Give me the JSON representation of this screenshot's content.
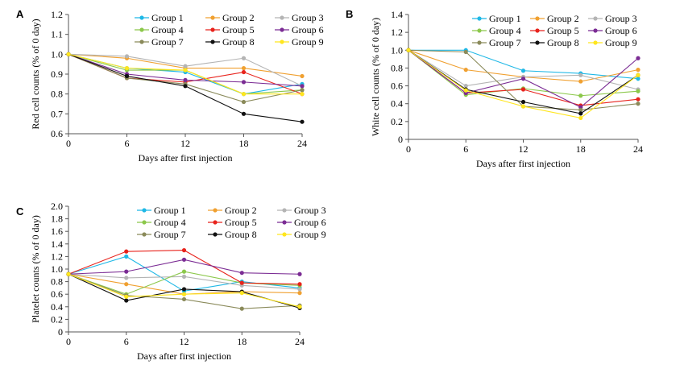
{
  "groups": [
    "Group 1",
    "Group 2",
    "Group 3",
    "Group 4",
    "Group 5",
    "Group 6",
    "Group 7",
    "Group 8",
    "Group 9"
  ],
  "colors": {
    "Group 1": "#1fb8e6",
    "Group 2": "#f0a030",
    "Group 3": "#b4b4b4",
    "Group 4": "#8cc84b",
    "Group 5": "#e8231c",
    "Group 6": "#7b2c94",
    "Group 7": "#8a8a5a",
    "Group 8": "#111111",
    "Group 9": "#ffe61e"
  },
  "chart_data": [
    {
      "panel": "A",
      "type": "line",
      "x": [
        0,
        6,
        12,
        18,
        24
      ],
      "xlabel": "Days after first injection",
      "ylabel": "Red cell counts (% of 0 day)",
      "ylim": [
        0.6,
        1.2
      ],
      "yticks": [
        "0.6",
        "0.7",
        "0.8",
        "0.9",
        "1.0",
        "1.1",
        "1.2"
      ],
      "xticks": [
        "0",
        "6",
        "12",
        "18",
        "24"
      ],
      "legend": "top-right",
      "series": [
        {
          "name": "Group 1",
          "values": [
            1.0,
            0.93,
            0.91,
            0.8,
            0.85
          ]
        },
        {
          "name": "Group 2",
          "values": [
            1.0,
            0.98,
            0.93,
            0.93,
            0.89
          ]
        },
        {
          "name": "Group 3",
          "values": [
            1.0,
            0.99,
            0.94,
            0.98,
            0.84
          ]
        },
        {
          "name": "Group 4",
          "values": [
            1.0,
            0.92,
            0.92,
            0.8,
            0.82
          ]
        },
        {
          "name": "Group 5",
          "values": [
            1.0,
            0.88,
            0.86,
            0.91,
            0.8
          ]
        },
        {
          "name": "Group 6",
          "values": [
            1.0,
            0.9,
            0.87,
            0.86,
            0.84
          ]
        },
        {
          "name": "Group 7",
          "values": [
            1.0,
            0.88,
            0.85,
            0.76,
            0.82
          ]
        },
        {
          "name": "Group 8",
          "values": [
            1.0,
            0.89,
            0.84,
            0.7,
            0.66
          ]
        },
        {
          "name": "Group 9",
          "values": [
            1.0,
            0.93,
            0.92,
            0.8,
            0.8
          ]
        }
      ]
    },
    {
      "panel": "B",
      "type": "line",
      "x": [
        0,
        6,
        12,
        18,
        24
      ],
      "xlabel": "Days after first injection",
      "ylabel": "White cell counts (% of 0 day)",
      "ylim": [
        0,
        1.4
      ],
      "yticks": [
        "0",
        "0.2",
        "0.4",
        "0.6",
        "0.8",
        "1.0",
        "1.2",
        "1.4"
      ],
      "xticks": [
        "0",
        "6",
        "12",
        "18",
        "24"
      ],
      "legend": "top-right",
      "series": [
        {
          "name": "Group 1",
          "values": [
            1.0,
            1.0,
            0.77,
            0.74,
            0.68
          ]
        },
        {
          "name": "Group 2",
          "values": [
            1.0,
            0.78,
            0.7,
            0.65,
            0.78
          ]
        },
        {
          "name": "Group 3",
          "values": [
            1.0,
            0.6,
            0.7,
            0.72,
            0.56
          ]
        },
        {
          "name": "Group 4",
          "values": [
            1.0,
            0.5,
            0.57,
            0.49,
            0.54
          ]
        },
        {
          "name": "Group 5",
          "values": [
            1.0,
            0.52,
            0.56,
            0.38,
            0.45
          ]
        },
        {
          "name": "Group 6",
          "values": [
            1.0,
            0.52,
            0.68,
            0.36,
            0.91
          ]
        },
        {
          "name": "Group 7",
          "values": [
            1.0,
            0.98,
            0.37,
            0.33,
            0.4
          ]
        },
        {
          "name": "Group 8",
          "values": [
            1.0,
            0.56,
            0.42,
            0.29,
            0.72
          ]
        },
        {
          "name": "Group 9",
          "values": [
            1.0,
            0.55,
            0.37,
            0.24,
            0.72
          ]
        }
      ]
    },
    {
      "panel": "C",
      "type": "line",
      "x": [
        0,
        6,
        12,
        18,
        24
      ],
      "xlabel": "Days after first injection",
      "ylabel": "Platelet counts (% of 0 day)",
      "ylim": [
        0,
        2.0
      ],
      "yticks": [
        "0",
        "0.2",
        "0.4",
        "0.6",
        "0.8",
        "1.0",
        "1.2",
        "1.4",
        "1.6",
        "1.8",
        "2.0"
      ],
      "xticks": [
        "0",
        "6",
        "12",
        "18",
        "24"
      ],
      "legend": "top",
      "series": [
        {
          "name": "Group 1",
          "values": [
            0.92,
            1.2,
            0.65,
            0.8,
            0.7
          ]
        },
        {
          "name": "Group 2",
          "values": [
            0.92,
            0.76,
            0.6,
            0.64,
            0.62
          ]
        },
        {
          "name": "Group 3",
          "values": [
            0.92,
            0.86,
            0.88,
            0.74,
            0.68
          ]
        },
        {
          "name": "Group 4",
          "values": [
            0.92,
            0.6,
            0.96,
            0.78,
            0.74
          ]
        },
        {
          "name": "Group 5",
          "values": [
            0.92,
            1.28,
            1.3,
            0.78,
            0.76
          ]
        },
        {
          "name": "Group 6",
          "values": [
            0.92,
            0.96,
            1.15,
            0.94,
            0.92
          ]
        },
        {
          "name": "Group 7",
          "values": [
            0.92,
            0.58,
            0.52,
            0.37,
            0.42
          ]
        },
        {
          "name": "Group 8",
          "values": [
            0.92,
            0.5,
            0.68,
            0.64,
            0.38
          ]
        },
        {
          "name": "Group 9",
          "values": [
            0.92,
            0.56,
            0.6,
            0.62,
            0.4
          ]
        }
      ]
    }
  ]
}
